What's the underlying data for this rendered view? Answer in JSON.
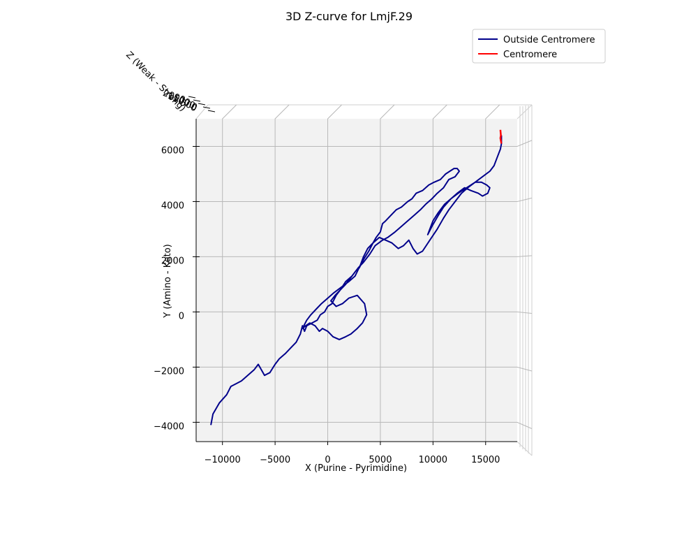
{
  "chart_data": {
    "type": "line",
    "title": "3D Z-curve for LmjF.29",
    "xlabel": "X (Purine - Pyrimidine)",
    "ylabel": "Y (Amino - Keto)",
    "zlabel": "Z (Weak - Strong)",
    "xlim": [
      -12500,
      18000
    ],
    "ylim": [
      -4700,
      7000
    ],
    "x_ticks": [
      -10000,
      -5000,
      0,
      5000,
      10000,
      15000
    ],
    "y_ticks": [
      -4000,
      -2000,
      0,
      2000,
      4000,
      6000
    ],
    "x_tick_labels": [
      "−10000",
      "−5000",
      "0",
      "5000",
      "10000",
      "15000"
    ],
    "y_tick_labels": [
      "−4000",
      "−2000",
      "0",
      "2000",
      "4000",
      "6000"
    ],
    "z_tick_labels": [
      "2000",
      "1500",
      "1000",
      "500",
      "0"
    ],
    "grid": true,
    "legend_position": "top-right",
    "series": [
      {
        "name": "Outside Centromere",
        "color": "#00008b",
        "x": [
          -11100,
          -10900,
          -10300,
          -9600,
          -9200,
          -8700,
          -8200,
          -7600,
          -7000,
          -6600,
          -6000,
          -5500,
          -5000,
          -4600,
          -4000,
          -3500,
          -3000,
          -2600,
          -2400,
          -2200,
          -2000,
          -1500,
          -1000,
          -700,
          -300,
          0,
          400,
          800,
          1200,
          1700,
          2300,
          2700,
          3000,
          3400,
          3900,
          4300,
          4600,
          5000,
          5200,
          5500,
          6000,
          6500,
          7000,
          7600,
          8000,
          8400,
          9000,
          9600,
          10100,
          10700,
          11200,
          11600,
          12000,
          12300,
          12500,
          12100,
          11500,
          11000,
          10400,
          9900,
          9300,
          8800,
          8200,
          7600,
          7000,
          6400,
          5700,
          5200,
          4500,
          4000,
          3400,
          2900,
          2300,
          1700,
          1200,
          700,
          300,
          800,
          1400,
          2000,
          2800,
          3500,
          3700,
          3300,
          2800,
          2200,
          1700,
          1100,
          500,
          0,
          -500,
          -800,
          -1200,
          -1700,
          -2100,
          -2400,
          -2000,
          -1600,
          -1100,
          -600,
          0,
          600,
          1300,
          2000,
          2600,
          3100,
          3400,
          3800,
          4300,
          4900,
          5500,
          6100,
          6700,
          7200,
          7700,
          8100,
          8500,
          9000,
          9700,
          10400,
          11000,
          11500,
          12100,
          12700,
          13300,
          14000,
          14600,
          15100,
          15400,
          15200,
          14700,
          14300,
          13600,
          13000,
          12300,
          11700,
          11100,
          10500,
          10000,
          9700,
          9500,
          9900,
          10500,
          11000,
          11700,
          12400,
          13200,
          14000,
          14700,
          15400,
          15800,
          16100,
          16400,
          16500,
          16500
        ],
        "y": [
          -4100,
          -3700,
          -3300,
          -3000,
          -2700,
          -2600,
          -2500,
          -2300,
          -2100,
          -1900,
          -2300,
          -2200,
          -1900,
          -1700,
          -1500,
          -1300,
          -1100,
          -800,
          -500,
          -700,
          -500,
          -400,
          -300,
          -100,
          0,
          200,
          300,
          600,
          800,
          1100,
          1300,
          1500,
          1600,
          1900,
          2200,
          2500,
          2700,
          2900,
          3200,
          3300,
          3500,
          3700,
          3800,
          4000,
          4100,
          4300,
          4400,
          4600,
          4700,
          4800,
          5000,
          5100,
          5200,
          5200,
          5100,
          4900,
          4800,
          4500,
          4300,
          4100,
          3900,
          3700,
          3500,
          3300,
          3100,
          2900,
          2700,
          2600,
          2400,
          2100,
          1800,
          1600,
          1300,
          1000,
          800,
          600,
          400,
          200,
          300,
          500,
          600,
          300,
          -100,
          -400,
          -600,
          -800,
          -900,
          -1000,
          -900,
          -700,
          -600,
          -700,
          -500,
          -400,
          -500,
          -600,
          -300,
          -100,
          100,
          300,
          500,
          700,
          900,
          1100,
          1300,
          1700,
          2000,
          2300,
          2500,
          2700,
          2600,
          2500,
          2300,
          2400,
          2600,
          2300,
          2100,
          2200,
          2600,
          3000,
          3400,
          3700,
          4000,
          4300,
          4500,
          4700,
          4700,
          4600,
          4500,
          4300,
          4200,
          4300,
          4400,
          4500,
          4300,
          4100,
          3900,
          3600,
          3300,
          3000,
          2800,
          3100,
          3500,
          3800,
          4100,
          4300,
          4500,
          4700,
          4900,
          5100,
          5300,
          5600,
          5900,
          6100,
          6400
        ]
      },
      {
        "name": "Centromere",
        "color": "#ff0000",
        "x": [
          16500,
          16450,
          16400,
          16450,
          16400
        ],
        "y": [
          6100,
          6200,
          6300,
          6400,
          6600
        ]
      }
    ]
  }
}
